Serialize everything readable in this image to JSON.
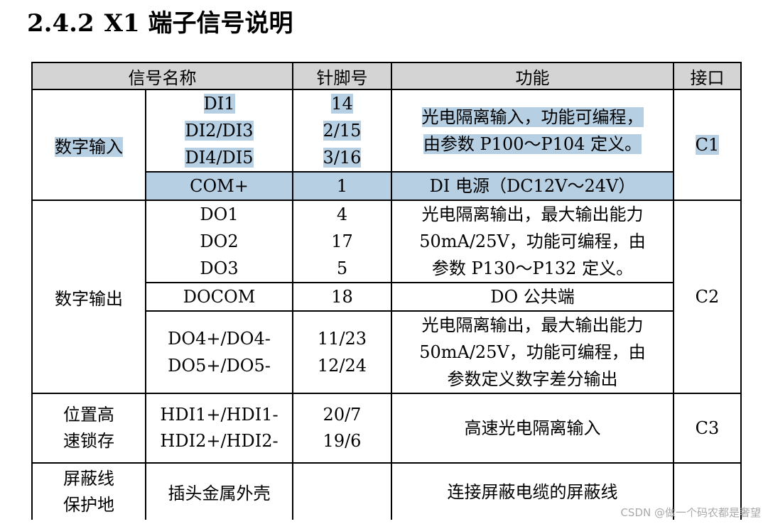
{
  "section": {
    "number": "2.4.2",
    "title": "X1 端子信号说明"
  },
  "columns": [
    "信号名称",
    "针脚号",
    "功能",
    "接口"
  ],
  "rows": {
    "digital_input": {
      "group": "数字输入",
      "signals": [
        "DI1",
        "DI2/DI3",
        "DI4/DI5"
      ],
      "pins": [
        "14",
        "2/15",
        "3/16"
      ],
      "function_lines": [
        "光电隔离输入，功能可编程，",
        "由参数 P100～P104 定义。"
      ],
      "interface": "C1",
      "com": {
        "signal": "COM+",
        "pin": "1",
        "function": "DI 电源（DC12V～24V）"
      }
    },
    "digital_output": {
      "group": "数字输出",
      "interface": "C2",
      "do123": {
        "signals": [
          "DO1",
          "DO2",
          "DO3"
        ],
        "pins": [
          "4",
          "17",
          "5"
        ],
        "function_lines": [
          "光电隔离输出，最大输出能力",
          "50mA/25V，功能可编程，由",
          "参数 P130～P132 定义。"
        ]
      },
      "docom": {
        "signal": "DOCOM",
        "pin": "18",
        "function": "DO 公共端"
      },
      "do45": {
        "signals": [
          "DO4+/DO4-",
          "DO5+/DO5-"
        ],
        "pins": [
          "11/23",
          "12/24"
        ],
        "function_lines": [
          "光电隔离输出，最大输出能力",
          "50mA/25V，功能可编程，由",
          "参数定义数字差分输出"
        ]
      }
    },
    "latch": {
      "group_lines": [
        "位置高",
        "速锁存"
      ],
      "signals": [
        "HDI1+/HDI1-",
        "HDI2+/HDI2-"
      ],
      "pins": [
        "20/7",
        "19/6"
      ],
      "function": "高速光电隔离输入",
      "interface": "C3"
    },
    "shield": {
      "group_lines": [
        "屏蔽线",
        "保护地"
      ],
      "signal": "插头金属外壳",
      "pin": "",
      "function": "连接屏蔽电缆的屏蔽线",
      "interface": ""
    }
  },
  "watermark": "CSDN @做一个码农都是奢望",
  "colors": {
    "highlight": "#b7cfe3",
    "header_bg": "#d4d4d4"
  }
}
